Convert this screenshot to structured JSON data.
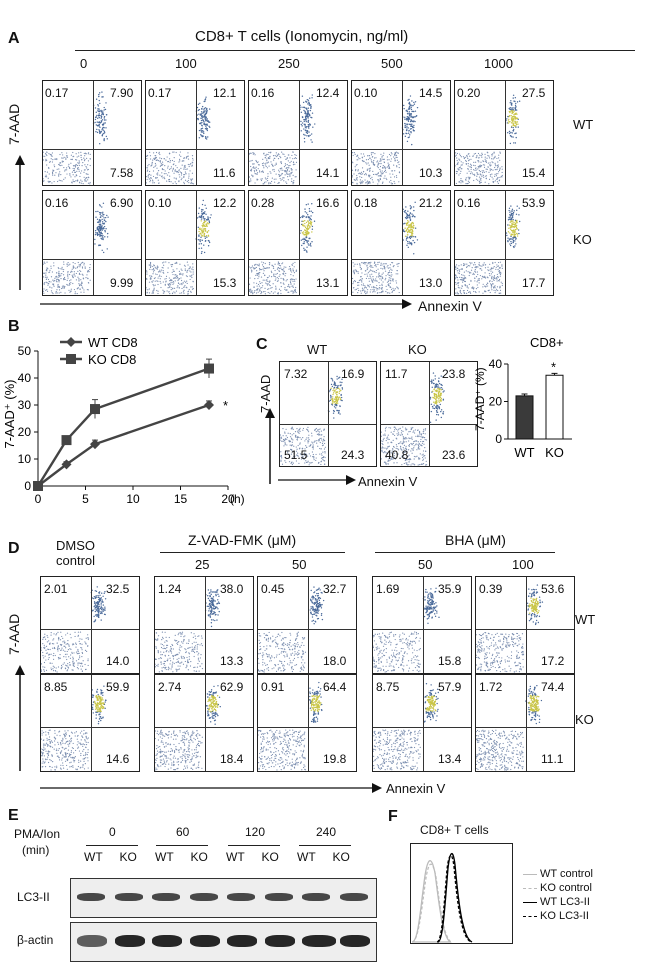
{
  "panelA": {
    "letter": "A",
    "header": "CD8+ T cells (Ionomycin, ng/ml)",
    "doses": [
      "0",
      "100",
      "250",
      "500",
      "1000"
    ],
    "rows": [
      {
        "label": "WT",
        "quads": [
          [
            "0.17",
            "7.90",
            "7.58"
          ],
          [
            "0.17",
            "12.1",
            "11.6"
          ],
          [
            "0.16",
            "12.4",
            "14.1"
          ],
          [
            "0.10",
            "14.5",
            "10.3"
          ],
          [
            "0.20",
            "27.5",
            "15.4"
          ]
        ]
      },
      {
        "label": "KO",
        "quads": [
          [
            "0.16",
            "6.90",
            "9.99"
          ],
          [
            "0.10",
            "12.2",
            "15.3"
          ],
          [
            "0.28",
            "16.6",
            "13.1"
          ],
          [
            "0.18",
            "21.2",
            "13.0"
          ],
          [
            "0.16",
            "53.9",
            "17.7"
          ]
        ]
      }
    ],
    "y_axis": "7-AAD",
    "x_axis": "Annexin V"
  },
  "panelB": {
    "letter": "B",
    "chart_data": {
      "type": "line",
      "x": [
        0,
        3,
        6,
        18
      ],
      "series": [
        {
          "name": "WT CD8",
          "values": [
            0,
            8,
            15.5,
            30
          ],
          "err": [
            0,
            1,
            1.5,
            1.5
          ],
          "marker": "diamond"
        },
        {
          "name": "KO CD8",
          "values": [
            0,
            17,
            28.5,
            43.5
          ],
          "err": [
            0,
            1.5,
            3.5,
            3.5
          ],
          "marker": "square"
        }
      ],
      "ylabel": "7-AAD⁺ (%)",
      "xlabel": "(h)",
      "xlim": [
        0,
        20
      ],
      "ylim": [
        0,
        50
      ],
      "xticks": [
        "0",
        "5",
        "10",
        "15",
        "20"
      ],
      "yticks": [
        "0",
        "10",
        "20",
        "30",
        "40",
        "50"
      ],
      "annotation": "*"
    }
  },
  "panelC": {
    "letter": "C",
    "facs": [
      {
        "title": "WT",
        "quads": [
          "7.32",
          "16.9",
          "51.5",
          "24.3"
        ]
      },
      {
        "title": "KO",
        "quads": [
          "11.7",
          "23.8",
          "40.8",
          "23.6"
        ]
      }
    ],
    "y_axis": "7-AAD",
    "x_axis": "Annexin V",
    "chart_data": {
      "type": "bar",
      "title": "CD8+",
      "categories": [
        "WT",
        "KO"
      ],
      "values": [
        23,
        34
      ],
      "err": [
        1,
        1
      ],
      "ylabel": "7-AAD⁺ (%)",
      "ylim": [
        0,
        40
      ],
      "yticks": [
        "0",
        "20",
        "40"
      ],
      "annotation": "*"
    }
  },
  "panelD": {
    "letter": "D",
    "groups": [
      {
        "label": "DMSO",
        "sub": "control",
        "doses": [
          ""
        ]
      },
      {
        "label": "Z-VAD-FMK (μM)",
        "doses": [
          "25",
          "50"
        ]
      },
      {
        "label": "BHA (μM)",
        "doses": [
          "50",
          "100"
        ]
      }
    ],
    "rows": [
      {
        "label": "WT",
        "quads": [
          [
            "2.01",
            "32.5",
            "14.0"
          ],
          [
            "1.24",
            "38.0",
            "13.3"
          ],
          [
            "0.45",
            "32.7",
            "18.0"
          ],
          [
            "1.69",
            "35.9",
            "15.8"
          ],
          [
            "0.39",
            "53.6",
            "17.2"
          ]
        ]
      },
      {
        "label": "KO",
        "quads": [
          [
            "8.85",
            "59.9",
            "14.6"
          ],
          [
            "2.74",
            "62.9",
            "18.4"
          ],
          [
            "0.91",
            "64.4",
            "19.8"
          ],
          [
            "8.75",
            "57.9",
            "13.4"
          ],
          [
            "1.72",
            "74.4",
            "11.1"
          ]
        ]
      }
    ],
    "y_axis": "7-AAD",
    "x_axis": "Annexin V"
  },
  "panelE": {
    "letter": "E",
    "treatment": "PMA/Ion",
    "unit": "(min)",
    "times": [
      "0",
      "60",
      "120",
      "240"
    ],
    "lanes": [
      "WT",
      "KO",
      "WT",
      "KO",
      "WT",
      "KO",
      "WT",
      "KO"
    ],
    "blots": [
      "LC3-II",
      "β-actin"
    ]
  },
  "panelF": {
    "letter": "F",
    "title": "CD8+ T cells",
    "legend": [
      "WT control",
      "KO control",
      "WT LC3-II",
      "KO  LC3-II"
    ]
  }
}
